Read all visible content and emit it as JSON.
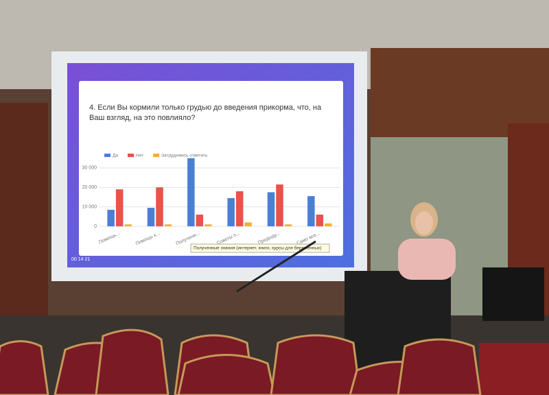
{
  "chart_data": {
    "type": "bar",
    "title": "4. Если Вы кормили только грудью до введения прикорма, что, на Ваш взгляд, на это повлияло?",
    "categories": [
      "Помощь...",
      "Помощь к...",
      "Получени...",
      "Советы п...",
      "Предыду...",
      "Само все..."
    ],
    "series": [
      {
        "name": "Да",
        "color": "#4a7fd4",
        "values": [
          8500,
          9500,
          35000,
          14500,
          17500,
          15500
        ]
      },
      {
        "name": "Нет",
        "color": "#e8534a",
        "values": [
          19000,
          20000,
          6000,
          18000,
          21500,
          6000
        ]
      },
      {
        "name": "Затрудняюсь ответить",
        "color": "#f2b136",
        "values": [
          1000,
          1000,
          1000,
          2000,
          1000,
          1500
        ]
      }
    ],
    "ylim": [
      0,
      37000
    ],
    "yticks": [
      0,
      {
        "value": 10000,
        "label": "10 000"
      },
      {
        "value": 20000,
        "label": "20 000"
      },
      {
        "value": 30000,
        "label": "30 000"
      }
    ],
    "grid": true,
    "tooltip": "Полученные знания (интернет, книги, курсы для беременных)",
    "timer": "00 14 21"
  }
}
